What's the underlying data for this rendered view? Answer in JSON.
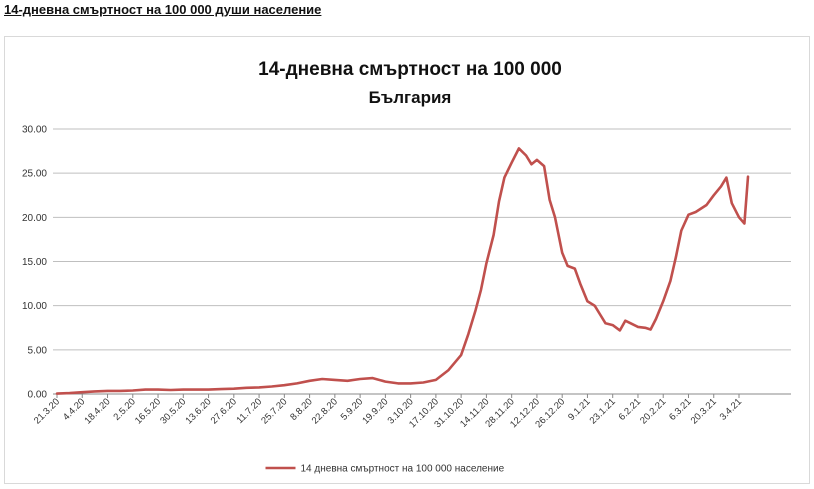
{
  "page": {
    "heading": "14-дневна смъртност на 100 000 души население"
  },
  "chart_data": {
    "type": "line",
    "title": "14-дневна смъртност на 100 000",
    "subtitle": "България",
    "xlabel": "",
    "ylabel": "",
    "ylim": [
      0,
      30
    ],
    "yticks": [
      "0.00",
      "5.00",
      "10.00",
      "15.00",
      "20.00",
      "25.00",
      "30.00"
    ],
    "grid": "horizontal",
    "legend_position": "bottom",
    "line_color": "#c0504d",
    "x_tick_labels": [
      "21.3.20",
      "4.4.20",
      "18.4.20",
      "2.5.20",
      "16.5.20",
      "30.5.20",
      "13.6.20",
      "27.6.20",
      "11.7.20",
      "25.7.20",
      "8.8.20",
      "22.8.20",
      "5.9.20",
      "19.9.20",
      "3.10.20",
      "17.10.20",
      "31.10.20",
      "14.11.20",
      "28.11.20",
      "12.12.20",
      "26.12.20",
      "9.1.21",
      "23.1.21",
      "6.2.21",
      "20.2.21",
      "6.3.21",
      "20.3.21",
      "3.4.21"
    ],
    "series": [
      {
        "name": "14 дневна смъртност на 100 000 население",
        "x": [
          "21.3.20",
          "28.3.20",
          "4.4.20",
          "11.4.20",
          "18.4.20",
          "25.4.20",
          "2.5.20",
          "9.5.20",
          "16.5.20",
          "23.5.20",
          "30.5.20",
          "6.6.20",
          "13.6.20",
          "20.6.20",
          "27.6.20",
          "4.7.20",
          "11.7.20",
          "18.7.20",
          "25.7.20",
          "1.8.20",
          "8.8.20",
          "15.8.20",
          "22.8.20",
          "29.8.20",
          "5.9.20",
          "12.9.20",
          "19.9.20",
          "26.9.20",
          "3.10.20",
          "10.10.20",
          "17.10.20",
          "24.10.20",
          "31.10.20",
          "4.11.20",
          "8.11.20",
          "11.11.20",
          "14.11.20",
          "18.11.20",
          "21.11.20",
          "24.11.20",
          "28.11.20",
          "2.12.20",
          "6.12.20",
          "9.12.20",
          "12.12.20",
          "16.12.20",
          "19.12.20",
          "22.12.20",
          "26.12.20",
          "29.12.20",
          "2.1.21",
          "5.1.21",
          "9.1.21",
          "13.1.21",
          "16.1.21",
          "19.1.21",
          "23.1.21",
          "27.1.21",
          "30.1.21",
          "2.2.21",
          "6.2.21",
          "10.2.21",
          "13.2.21",
          "16.2.21",
          "20.2.21",
          "24.2.21",
          "27.2.21",
          "2.3.21",
          "6.3.21",
          "10.3.21",
          "13.3.21",
          "16.3.21",
          "20.3.21",
          "24.3.21",
          "27.3.21",
          "30.3.21",
          "3.4.21",
          "6.4.21",
          "8.4.21"
        ],
        "values": [
          0.05,
          0.1,
          0.2,
          0.3,
          0.35,
          0.35,
          0.4,
          0.5,
          0.5,
          0.45,
          0.5,
          0.5,
          0.5,
          0.55,
          0.6,
          0.7,
          0.75,
          0.85,
          1.0,
          1.2,
          1.5,
          1.7,
          1.6,
          1.5,
          1.7,
          1.8,
          1.4,
          1.2,
          1.2,
          1.3,
          1.6,
          2.7,
          4.4,
          6.8,
          9.5,
          11.8,
          14.8,
          18.0,
          21.8,
          24.5,
          26.2,
          27.8,
          27.0,
          26.0,
          26.5,
          25.8,
          22.0,
          20.0,
          16.0,
          14.5,
          14.2,
          12.5,
          10.5,
          10.0,
          9.0,
          8.0,
          7.8,
          7.2,
          8.3,
          8.0,
          7.6,
          7.5,
          7.3,
          8.5,
          10.5,
          12.8,
          15.5,
          18.5,
          20.3,
          20.6,
          21.0,
          21.4,
          22.5,
          23.5,
          24.5,
          21.6,
          20.0,
          19.3,
          24.6
        ]
      }
    ]
  }
}
